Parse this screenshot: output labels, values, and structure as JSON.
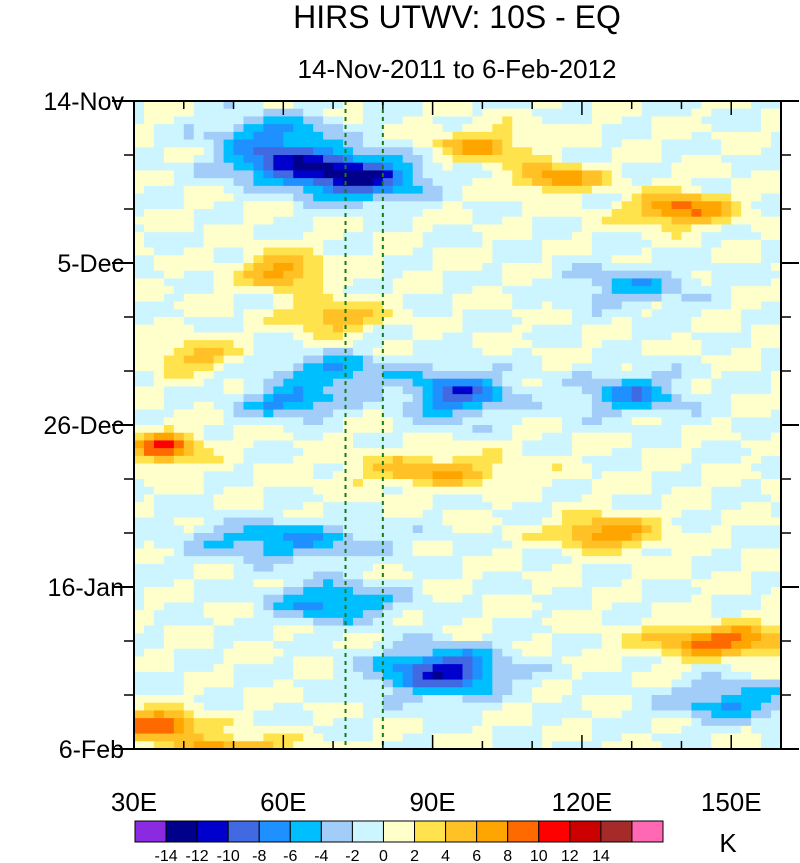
{
  "chart_data": {
    "type": "heatmap",
    "title": "HIRS UTWV: 10S - EQ",
    "subtitle": "14-Nov-2011 to 6-Feb-2012",
    "xlabel": "",
    "ylabel": "",
    "xlim": [
      30,
      160
    ],
    "ylim_days": [
      0,
      84
    ],
    "x_ticks": [
      {
        "value": 30,
        "label": "30E"
      },
      {
        "value": 60,
        "label": "60E"
      },
      {
        "value": 90,
        "label": "90E"
      },
      {
        "value": 120,
        "label": "120E"
      },
      {
        "value": 150,
        "label": "150E"
      }
    ],
    "y_ticks": [
      {
        "value": 0,
        "label": "14-Nov"
      },
      {
        "value": 21,
        "label": "5-Dec"
      },
      {
        "value": 42,
        "label": "26-Dec"
      },
      {
        "value": 63,
        "label": "16-Jan"
      },
      {
        "value": 84,
        "label": "6-Feb"
      }
    ],
    "reference_lines_lon": [
      72.5,
      80
    ],
    "colorbar": {
      "unit": "K",
      "colors": [
        "#8a2be2",
        "#00008b",
        "#0000cd",
        "#4169e1",
        "#1e90ff",
        "#00bfff",
        "#a3cdf9",
        "#cdf5ff",
        "#ffffcc",
        "#ffe34d",
        "#ffc125",
        "#ffa500",
        "#ff6a00",
        "#ff0000",
        "#cd0000",
        "#a52a2a",
        "#ff69b4"
      ],
      "levels": [
        -14,
        -12,
        -10,
        -8,
        -6,
        -4,
        -2,
        0,
        2,
        4,
        6,
        8,
        10,
        12,
        14
      ],
      "labels": [
        "-14",
        "-12",
        "-10",
        "-8",
        "-6",
        "-4",
        "-2",
        "0",
        "2",
        "4",
        "6",
        "8",
        "10",
        "12",
        "14"
      ]
    },
    "anomalies": [
      {
        "lon": 58,
        "day": 4,
        "amp": -6,
        "slon": 12,
        "sday": 2.5
      },
      {
        "lon": 75,
        "day": 10,
        "amp": -12,
        "slon": 12,
        "sday": 2.8
      },
      {
        "lon": 60,
        "day": 8,
        "amp": -9,
        "slon": 12,
        "sday": 2.5
      },
      {
        "lon": 100,
        "day": 6,
        "amp": 6,
        "slon": 10,
        "sday": 2.2
      },
      {
        "lon": 115,
        "day": 10,
        "amp": 8,
        "slon": 8,
        "sday": 1.6
      },
      {
        "lon": 140,
        "day": 14,
        "amp": 9,
        "slon": 10,
        "sday": 2.0
      },
      {
        "lon": 60,
        "day": 22,
        "amp": 7,
        "slon": 8,
        "sday": 2.4
      },
      {
        "lon": 70,
        "day": 28,
        "amp": 6,
        "slon": 9,
        "sday": 2.0
      },
      {
        "lon": 42,
        "day": 33,
        "amp": 5,
        "slon": 8,
        "sday": 2.0
      },
      {
        "lon": 130,
        "day": 24,
        "amp": -5,
        "slon": 12,
        "sday": 2.5
      },
      {
        "lon": 95,
        "day": 38,
        "amp": -9,
        "slon": 10,
        "sday": 3.0
      },
      {
        "lon": 70,
        "day": 35,
        "amp": -6,
        "slon": 12,
        "sday": 2.2
      },
      {
        "lon": 62,
        "day": 39,
        "amp": -7,
        "slon": 10,
        "sday": 2.0
      },
      {
        "lon": 130,
        "day": 38,
        "amp": -7,
        "slon": 10,
        "sday": 2.5
      },
      {
        "lon": 36,
        "day": 45,
        "amp": 10,
        "slon": 7,
        "sday": 2.0
      },
      {
        "lon": 90,
        "day": 48,
        "amp": 6,
        "slon": 15,
        "sday": 2.0
      },
      {
        "lon": 125,
        "day": 56,
        "amp": 8,
        "slon": 10,
        "sday": 2.0
      },
      {
        "lon": 60,
        "day": 57,
        "amp": -6,
        "slon": 18,
        "sday": 2.5
      },
      {
        "lon": 70,
        "day": 65,
        "amp": -7,
        "slon": 12,
        "sday": 2.5
      },
      {
        "lon": 92,
        "day": 74,
        "amp": -11,
        "slon": 12,
        "sday": 3.0
      },
      {
        "lon": 148,
        "day": 70,
        "amp": 9,
        "slon": 14,
        "sday": 2.0
      },
      {
        "lon": 35,
        "day": 81,
        "amp": 11,
        "slon": 8,
        "sday": 1.8
      },
      {
        "lon": 50,
        "day": 84,
        "amp": 8,
        "slon": 10,
        "sday": 1.5
      },
      {
        "lon": 150,
        "day": 78,
        "amp": -6,
        "slon": 12,
        "sday": 2.5
      }
    ]
  }
}
